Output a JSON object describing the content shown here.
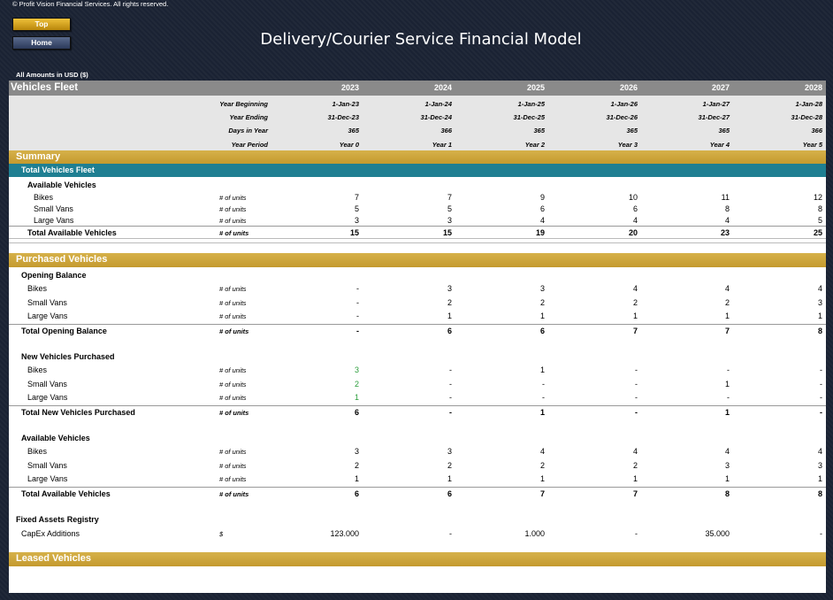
{
  "copyright": "© Profit Vision Financial Services. All rights reserved.",
  "nav": {
    "top": "Top",
    "home": "Home"
  },
  "title": "Delivery/Courier Service Financial Model",
  "amounts_note": "All Amounts in  USD ($)",
  "header": {
    "label": "Vehicles Fleet",
    "years": [
      "2023",
      "2024",
      "2025",
      "2026",
      "2027",
      "2028"
    ],
    "year_beginning_label": "Year Beginning",
    "year_beginning": [
      "1-Jan-23",
      "1-Jan-24",
      "1-Jan-25",
      "1-Jan-26",
      "1-Jan-27",
      "1-Jan-28"
    ],
    "year_ending_label": "Year Ending",
    "year_ending": [
      "31-Dec-23",
      "31-Dec-24",
      "31-Dec-25",
      "31-Dec-26",
      "31-Dec-27",
      "31-Dec-28"
    ],
    "days_label": "Days in Year",
    "days": [
      "365",
      "366",
      "365",
      "365",
      "365",
      "366"
    ],
    "period_label": "Year Period",
    "period": [
      "Year 0",
      "Year 1",
      "Year 2",
      "Year 3",
      "Year 4",
      "Year 5"
    ]
  },
  "summary": {
    "section": "Summary",
    "band": "Total Vehicles Fleet",
    "group": "Available Vehicles",
    "unit": "# of units",
    "rows": [
      {
        "label": "Bikes",
        "values": [
          "7",
          "7",
          "9",
          "10",
          "11",
          "12"
        ]
      },
      {
        "label": "Small Vans",
        "values": [
          "5",
          "5",
          "6",
          "6",
          "8",
          "8"
        ]
      },
      {
        "label": "Large Vans",
        "values": [
          "3",
          "3",
          "4",
          "4",
          "4",
          "5"
        ]
      }
    ],
    "total": {
      "label": "Total Available Vehicles",
      "values": [
        "15",
        "15",
        "19",
        "20",
        "23",
        "25"
      ]
    }
  },
  "purchased": {
    "section": "Purchased Vehicles",
    "unit": "# of units",
    "opening": {
      "title": "Opening Balance",
      "rows": [
        {
          "label": "Bikes",
          "values": [
            "-",
            "3",
            "3",
            "4",
            "4",
            "4"
          ]
        },
        {
          "label": "Small Vans",
          "values": [
            "-",
            "2",
            "2",
            "2",
            "2",
            "3"
          ]
        },
        {
          "label": "Large Vans",
          "values": [
            "-",
            "1",
            "1",
            "1",
            "1",
            "1"
          ]
        }
      ],
      "total": {
        "label": "Total Opening Balance",
        "values": [
          "-",
          "6",
          "6",
          "7",
          "7",
          "8"
        ]
      }
    },
    "new": {
      "title": "New Vehicles Purchased",
      "rows": [
        {
          "label": "Bikes",
          "values": [
            "3",
            "-",
            "1",
            "-",
            "-",
            "-"
          ]
        },
        {
          "label": "Small Vans",
          "values": [
            "2",
            "-",
            "-",
            "-",
            "1",
            "-"
          ]
        },
        {
          "label": "Large Vans",
          "values": [
            "1",
            "-",
            "-",
            "-",
            "-",
            "-"
          ]
        }
      ],
      "total": {
        "label": "Total New Vehicles Purchased",
        "values": [
          "6",
          "-",
          "1",
          "-",
          "1",
          "-"
        ]
      }
    },
    "available": {
      "title": "Available Vehicles",
      "rows": [
        {
          "label": "Bikes",
          "values": [
            "3",
            "3",
            "4",
            "4",
            "4",
            "4"
          ]
        },
        {
          "label": "Small Vans",
          "values": [
            "2",
            "2",
            "2",
            "2",
            "3",
            "3"
          ]
        },
        {
          "label": "Large Vans",
          "values": [
            "1",
            "1",
            "1",
            "1",
            "1",
            "1"
          ]
        }
      ],
      "total": {
        "label": "Total Available Vehicles",
        "values": [
          "6",
          "6",
          "7",
          "7",
          "8",
          "8"
        ]
      }
    },
    "registry": {
      "title": "Fixed Assets Registry",
      "label": "CapEx Additions",
      "unit": "$",
      "values": [
        "123.000",
        "-",
        "1.000",
        "-",
        "35.000",
        "-"
      ]
    }
  },
  "leased": {
    "section": "Leased Vehicles"
  }
}
